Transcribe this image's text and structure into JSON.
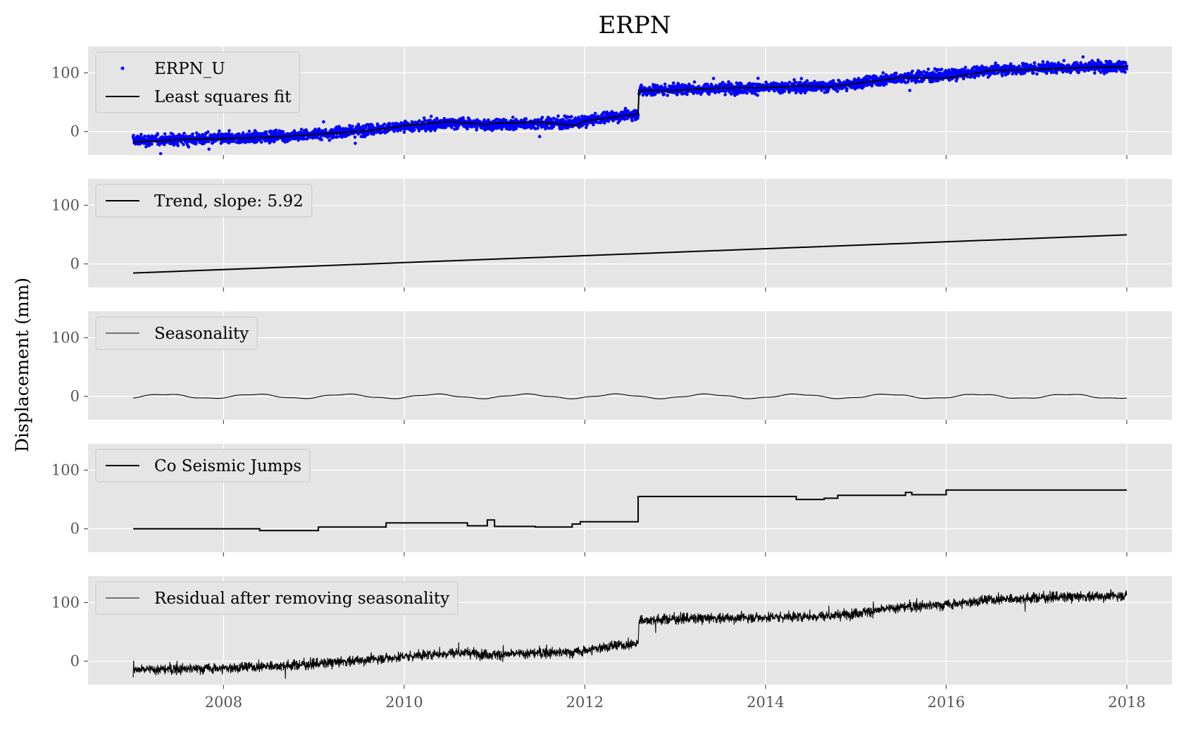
{
  "chart_data": {
    "type": "line",
    "title": "ERPN",
    "ylabel": "Displacement (mm)",
    "xlabel": "",
    "x_range": [
      2006.5,
      2018.5
    ],
    "ylim": [
      -40,
      145
    ],
    "x_ticks": [
      2008,
      2010,
      2012,
      2014,
      2016,
      2018
    ],
    "x_tick_labels": [
      "2008",
      "2010",
      "2012",
      "2014",
      "2016",
      "2018"
    ],
    "y_ticks": [
      0,
      100
    ],
    "y_tick_labels": [
      "0",
      "100"
    ],
    "grid": true,
    "legend_placement": "upper left",
    "colors": {
      "observations": "#0000ff",
      "fit": "#000000",
      "panel_background": "#e5e5e5"
    },
    "panels": [
      {
        "series": [
          {
            "name": "ERPN_U",
            "kind": "scatter",
            "segments": [
              {
                "x": [
                  2007.0,
                  2008.0,
                  2009.0,
                  2010.0,
                  2010.6,
                  2011.0,
                  2011.5,
                  2011.9,
                  2012.2,
                  2012.59
                ],
                "y": [
                  -15,
                  -12,
                  -5,
                  8,
                  15,
                  11,
                  14,
                  15,
                  24,
                  30
                ]
              },
              {
                "x": [
                  2012.6,
                  2013.0,
                  2014.0,
                  2014.4,
                  2014.8,
                  2015.0,
                  2015.5,
                  2016.0,
                  2016.5,
                  2017.0,
                  2018.0
                ],
                "y": [
                  70,
                  72,
                  75,
                  76,
                  78,
                  82,
                  92,
                  96,
                  105,
                  108,
                  112
                ]
              }
            ],
            "noise_sd": 8
          },
          {
            "name": "Least squares fit",
            "kind": "line",
            "x": [
              2007.0,
              2007.5,
              2008.0,
              2008.5,
              2009.0,
              2009.5,
              2009.8,
              2010.0,
              2010.5,
              2010.9,
              2011.0,
              2011.5,
              2011.9,
              2012.0,
              2012.3,
              2012.59,
              2012.6,
              2013.0,
              2013.5,
              2014.0,
              2014.4,
              2014.7,
              2015.0,
              2015.5,
              2016.0,
              2016.5,
              2017.0,
              2017.5,
              2018.0
            ],
            "y": [
              -18,
              -14,
              -12,
              -10,
              -5,
              0,
              5,
              10,
              17,
              12,
              14,
              16,
              10,
              18,
              24,
              30,
              70,
              70,
              74,
              75,
              78,
              76,
              82,
              92,
              91,
              104,
              106,
              109,
              110
            ]
          }
        ]
      },
      {
        "series": [
          {
            "name": "Trend, slope: 5.92",
            "kind": "line",
            "x": [
              2007.0,
              2018.0
            ],
            "y": [
              -15.5,
              49.6
            ]
          }
        ]
      },
      {
        "series": [
          {
            "name": "Seasonality",
            "kind": "line",
            "x_start": 2007.0,
            "x_end": 2018.0,
            "amplitude": 3.5,
            "period_years": 1.0,
            "peak_phase_years": 0.35
          }
        ]
      },
      {
        "series": [
          {
            "name": "Co Seismic Jumps",
            "kind": "step",
            "x": [
              2007.0,
              2008.4,
              2009.05,
              2009.8,
              2010.7,
              2010.92,
              2011.0,
              2011.45,
              2011.86,
              2011.95,
              2012.59,
              2014.34,
              2014.65,
              2014.8,
              2015.55,
              2015.62,
              2016.0,
              2018.0
            ],
            "y": [
              0,
              -3,
              3,
              10,
              5,
              15,
              4,
              3,
              8,
              12,
              55,
              50,
              52,
              57,
              62,
              58,
              66,
              66
            ]
          }
        ]
      },
      {
        "series": [
          {
            "name": "Residual after removing seasonality",
            "kind": "line",
            "segments": [
              {
                "x": [
                  2007.0,
                  2008.0,
                  2009.0,
                  2010.0,
                  2010.6,
                  2011.0,
                  2011.5,
                  2011.9,
                  2012.2,
                  2012.59
                ],
                "y": [
                  -15,
                  -12,
                  -5,
                  8,
                  15,
                  11,
                  14,
                  15,
                  24,
                  30
                ]
              },
              {
                "x": [
                  2012.6,
                  2013.0,
                  2014.0,
                  2014.4,
                  2014.8,
                  2015.0,
                  2015.5,
                  2016.0,
                  2016.5,
                  2017.0,
                  2018.0
                ],
                "y": [
                  70,
                  72,
                  75,
                  76,
                  78,
                  82,
                  92,
                  96,
                  105,
                  108,
                  112
                ]
              }
            ],
            "noise_sd": 8
          }
        ]
      }
    ]
  }
}
